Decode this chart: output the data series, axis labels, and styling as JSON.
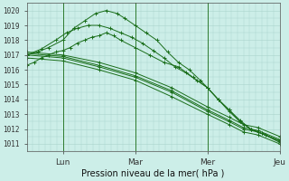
{
  "xlabel": "Pression niveau de la mer( hPa )",
  "bg_color": "#cceee8",
  "grid_color": "#aad4cc",
  "line_color": "#1a6e1a",
  "ylim": [
    1010.5,
    1020.5
  ],
  "yticks": [
    1011,
    1012,
    1013,
    1014,
    1015,
    1016,
    1017,
    1018,
    1019,
    1020
  ],
  "xlim": [
    0,
    3.5
  ],
  "day_positions": [
    0.5,
    1.5,
    2.5,
    3.5
  ],
  "day_labels": [
    "Lun",
    "Mar",
    "Mer",
    "Jeu"
  ],
  "day_vlines": [
    0.5,
    1.5,
    2.5
  ],
  "series": [
    {
      "x": [
        0.0,
        0.5,
        1.0,
        1.5,
        2.0,
        2.5,
        2.8,
        3.0,
        3.2,
        3.5
      ],
      "y": [
        1017.0,
        1016.8,
        1016.2,
        1015.5,
        1014.5,
        1013.2,
        1012.5,
        1012.0,
        1011.8,
        1011.2
      ]
    },
    {
      "x": [
        0.0,
        0.5,
        1.0,
        1.5,
        2.0,
        2.5,
        2.8,
        3.0,
        3.2,
        3.5
      ],
      "y": [
        1017.1,
        1016.9,
        1016.3,
        1015.6,
        1014.6,
        1013.3,
        1012.6,
        1012.1,
        1011.9,
        1011.3
      ]
    },
    {
      "x": [
        0.0,
        0.5,
        1.0,
        1.5,
        2.0,
        2.5,
        2.8,
        3.0,
        3.2,
        3.5
      ],
      "y": [
        1016.8,
        1016.6,
        1016.0,
        1015.3,
        1014.2,
        1013.0,
        1012.3,
        1011.8,
        1011.6,
        1011.0
      ]
    },
    {
      "x": [
        0.0,
        0.5,
        1.0,
        1.5,
        2.0,
        2.5,
        2.8,
        3.0,
        3.2,
        3.5
      ],
      "y": [
        1017.2,
        1017.0,
        1016.5,
        1015.8,
        1014.8,
        1013.5,
        1012.8,
        1012.3,
        1012.1,
        1011.5
      ]
    },
    {
      "x": [
        0.0,
        0.15,
        0.3,
        0.5,
        0.65,
        0.8,
        0.95,
        1.1,
        1.25,
        1.35,
        1.5,
        1.65,
        1.8,
        1.95,
        2.1,
        2.25,
        2.4,
        2.5,
        2.65,
        2.8,
        2.95,
        3.1,
        3.25,
        3.5
      ],
      "y": [
        1017.0,
        1017.2,
        1017.5,
        1018.0,
        1018.8,
        1019.3,
        1019.8,
        1020.0,
        1019.8,
        1019.5,
        1019.0,
        1018.5,
        1018.0,
        1017.2,
        1016.5,
        1016.0,
        1015.3,
        1014.8,
        1014.0,
        1013.3,
        1012.5,
        1012.0,
        1011.7,
        1011.2
      ]
    },
    {
      "x": [
        0.0,
        0.2,
        0.4,
        0.55,
        0.7,
        0.85,
        1.0,
        1.15,
        1.3,
        1.45,
        1.6,
        1.75,
        1.9,
        2.05,
        2.2,
        2.35,
        2.5,
        2.65,
        2.8,
        2.95,
        3.1,
        3.25,
        3.5
      ],
      "y": [
        1017.0,
        1017.4,
        1018.0,
        1018.5,
        1018.8,
        1019.0,
        1019.0,
        1018.8,
        1018.5,
        1018.2,
        1017.8,
        1017.3,
        1016.8,
        1016.2,
        1015.8,
        1015.3,
        1014.8,
        1014.0,
        1013.3,
        1012.6,
        1012.0,
        1011.7,
        1011.2
      ]
    },
    {
      "x": [
        0.0,
        0.1,
        0.2,
        0.3,
        0.4,
        0.5,
        0.6,
        0.7,
        0.8,
        0.9,
        1.0,
        1.1,
        1.2,
        1.3,
        1.5,
        1.7,
        1.9,
        2.1,
        2.3,
        2.5,
        2.65,
        2.8,
        2.95,
        3.1,
        3.3,
        3.5
      ],
      "y": [
        1016.3,
        1016.5,
        1016.8,
        1017.0,
        1017.2,
        1017.3,
        1017.5,
        1017.8,
        1018.0,
        1018.2,
        1018.3,
        1018.5,
        1018.3,
        1018.0,
        1017.5,
        1017.0,
        1016.5,
        1016.2,
        1015.5,
        1014.8,
        1014.0,
        1013.2,
        1012.5,
        1012.0,
        1011.6,
        1011.1
      ]
    }
  ]
}
